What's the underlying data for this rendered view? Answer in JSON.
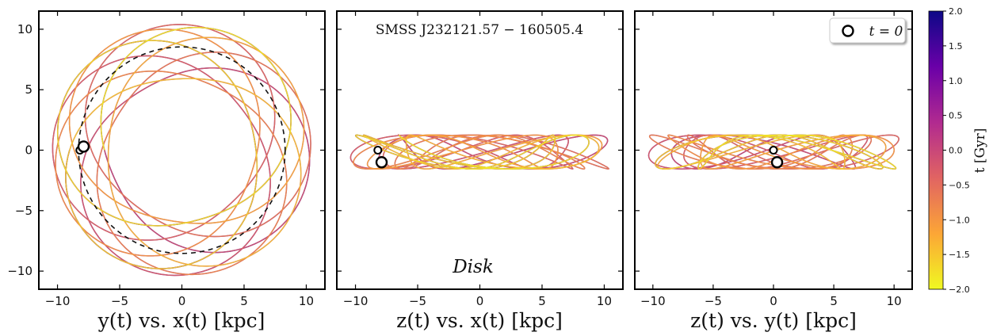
{
  "chart_data": [
    {
      "type": "line",
      "panel": "xy",
      "xlabel": "y(t) vs. x(t) [kpc]",
      "xlim": [
        -11.5,
        11.5
      ],
      "ylim": [
        -11.5,
        11.5
      ],
      "xticks": [
        "−10",
        "−5",
        "0",
        "5",
        "10"
      ],
      "yticks": [
        "10",
        "5",
        "0",
        "−5",
        "−10"
      ],
      "reference_circle_radius": 8.3,
      "orbit": {
        "r_min": 5.9,
        "r_max": 10.4,
        "z_amp": 1.4,
        "loops": 22
      },
      "markers": {
        "t0": [
          -7.9,
          0.3
        ],
        "sun": [
          -8.2,
          0.0
        ]
      }
    },
    {
      "type": "line",
      "panel": "xz",
      "xlabel": "z(t) vs. x(t) [kpc]",
      "xlim": [
        -11.5,
        11.5
      ],
      "ylim": [
        -11.5,
        11.5
      ],
      "xticks": [
        "−10",
        "−5",
        "0",
        "5",
        "10"
      ],
      "title": "SMSS J232121.57 − 160505.4",
      "annotation": "Disk",
      "markers": {
        "t0": [
          -7.9,
          -1.0
        ],
        "sun": [
          -8.2,
          0.0
        ]
      }
    },
    {
      "type": "line",
      "panel": "yz",
      "xlabel": "z(t) vs. y(t) [kpc]",
      "xlim": [
        -11.5,
        11.5
      ],
      "ylim": [
        -11.5,
        11.5
      ],
      "xticks": [
        "−10",
        "−5",
        "0",
        "5",
        "10"
      ],
      "legend": {
        "label": "t = 0",
        "position": "top-right"
      },
      "markers": {
        "t0": [
          0.3,
          -1.0
        ],
        "sun": [
          0.0,
          0.0
        ]
      }
    }
  ],
  "colorbar": {
    "label": "t [Gyr]",
    "range": [
      -2.0,
      2.0
    ],
    "ticks": [
      "2.0",
      "1.5",
      "1.0",
      "0.5",
      "0.0",
      "−0.5",
      "−1.0",
      "−1.5",
      "−2.0"
    ],
    "colormap": [
      "#0d0887",
      "#6a00a8",
      "#b12a90",
      "#e16462",
      "#fca636",
      "#f0f921"
    ]
  }
}
